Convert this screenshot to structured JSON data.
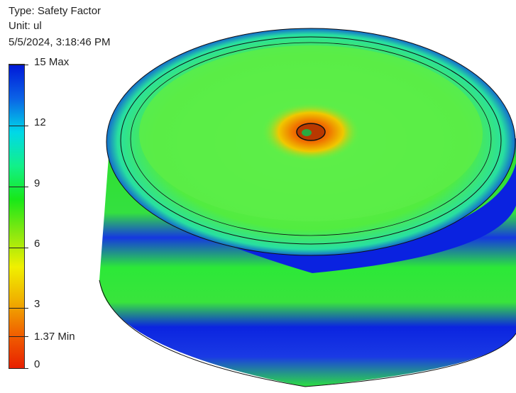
{
  "result": {
    "type_line": "Type: Safety Factor",
    "unit_line": "Unit: ul",
    "timestamp": "5/5/2024, 3:18:46 PM"
  },
  "legend": {
    "max_value": 15,
    "min_value": 0,
    "labels": {
      "max": "15 Max",
      "v12": "12",
      "v9": "9",
      "v6": "6",
      "v3": "3",
      "min": "1.37 Min",
      "v0": "0"
    },
    "colors": [
      "#0018d8",
      "#0b62e6",
      "#00d8e8",
      "#12f08a",
      "#18e818",
      "#8ae810",
      "#f0f000",
      "#f0b000",
      "#f06000",
      "#e82000"
    ]
  },
  "model": {
    "colors": {
      "blue": "#0a1fe0",
      "green": "#27e524",
      "light_green": "#5cf04a",
      "yellow": "#e8e800",
      "orange": "#f08000",
      "dark_orange": "#e05a00",
      "outline": "#101010"
    }
  }
}
